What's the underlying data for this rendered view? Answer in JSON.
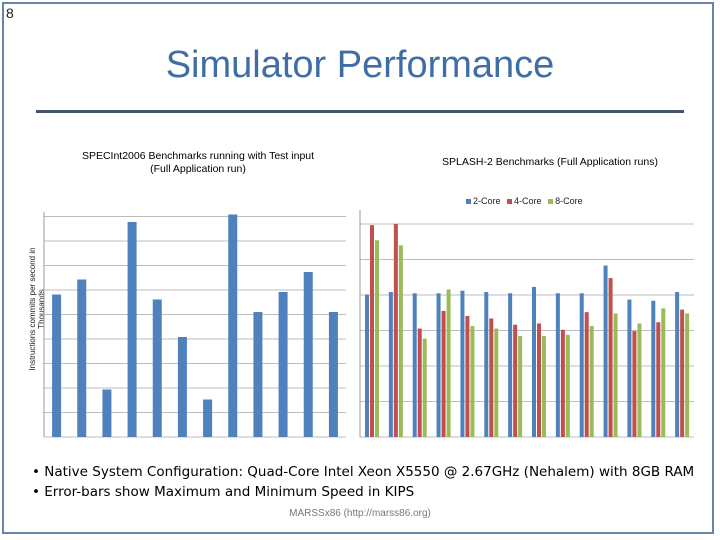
{
  "slide": {
    "number": "8",
    "title": "Simulator Performance",
    "footer": "MARSSx86 (http://marss86.org)",
    "bullets": [
      "• Native System Configuration: Quad-Core Intel Xeon X5550 @ 2.67GHz (Nehalem) with 8GB RAM",
      "• Error-bars show Maximum and Minimum Speed in KIPS"
    ]
  },
  "colors": {
    "series1": "#4f81bd",
    "series2": "#c0504d",
    "series3": "#9bbb59",
    "title": "#3f6ea6"
  },
  "chart_data": [
    {
      "type": "bar",
      "title": "SPECInt2006 Benchmarks running with Test input (Full Application run)",
      "ylabel": "Instructions commits per second in Thousands",
      "ylim": [
        0,
        900
      ],
      "grid": true,
      "values": [
        570,
        630,
        190,
        860,
        550,
        400,
        150,
        890,
        500,
        580,
        660,
        500
      ]
    },
    {
      "type": "bar",
      "title": "SPLASH-2 Benchmarks (Full Application runs)",
      "legend_position": "top",
      "ylim": [
        0,
        900
      ],
      "grid": true,
      "series": [
        {
          "name": "2-Core",
          "values": [
            565,
            575,
            570,
            570,
            580,
            575,
            570,
            595,
            570,
            570,
            680,
            545,
            540,
            575
          ]
        },
        {
          "name": "4-Core",
          "values": [
            840,
            845,
            430,
            500,
            480,
            470,
            445,
            450,
            425,
            495,
            630,
            420,
            455,
            505
          ]
        },
        {
          "name": "8-Core",
          "values": [
            780,
            760,
            390,
            585,
            440,
            430,
            400,
            400,
            405,
            440,
            490,
            450,
            510,
            490
          ]
        }
      ]
    }
  ]
}
